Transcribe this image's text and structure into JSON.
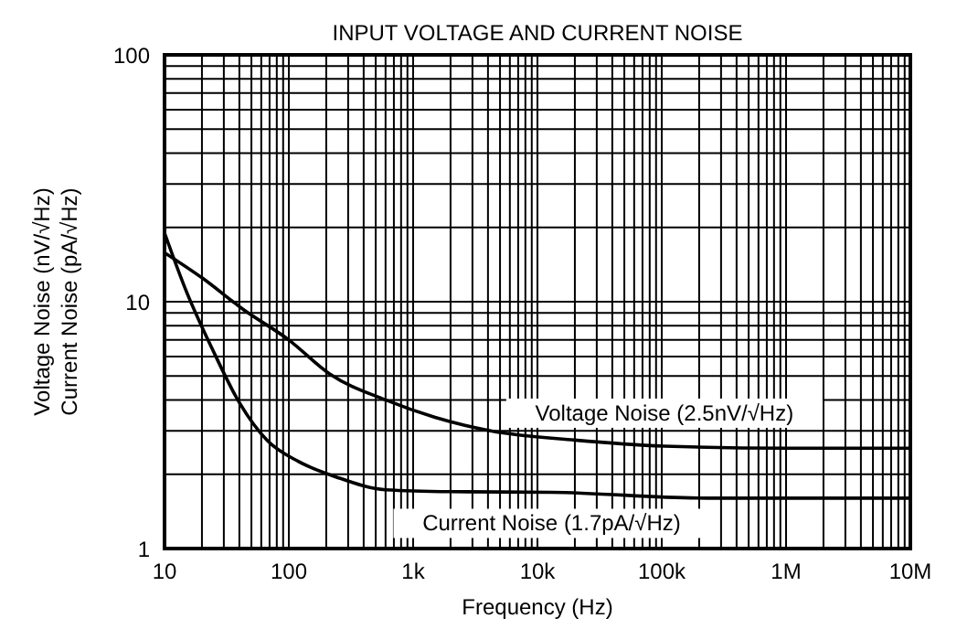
{
  "chart_data": {
    "type": "line",
    "title": "INPUT VOLTAGE AND CURRENT NOISE",
    "xlabel": "Frequency (Hz)",
    "ylabel": "Voltage Noise (nV/√Hz)\nCurrent Noise (pA/√Hz)",
    "log": "xy",
    "grid": true,
    "marker": "none",
    "line_style": "solid",
    "xlim": [
      10,
      10000000
    ],
    "ylim": [
      1,
      100
    ],
    "xticks": [
      {
        "value": 10,
        "label": "10"
      },
      {
        "value": 20,
        "label": null
      },
      {
        "value": 30,
        "label": null
      },
      {
        "value": 40,
        "label": null
      },
      {
        "value": 50,
        "label": null
      },
      {
        "value": 60,
        "label": null
      },
      {
        "value": 70,
        "label": null
      },
      {
        "value": 80,
        "label": null
      },
      {
        "value": 90,
        "label": null
      },
      {
        "value": 100,
        "label": "100"
      },
      {
        "value": 200,
        "label": null
      },
      {
        "value": 300,
        "label": null
      },
      {
        "value": 400,
        "label": null
      },
      {
        "value": 500,
        "label": null
      },
      {
        "value": 600,
        "label": null
      },
      {
        "value": 700,
        "label": null
      },
      {
        "value": 800,
        "label": null
      },
      {
        "value": 900,
        "label": null
      },
      {
        "value": 1000,
        "label": "1k"
      },
      {
        "value": 2000,
        "label": null
      },
      {
        "value": 3000,
        "label": null
      },
      {
        "value": 4000,
        "label": null
      },
      {
        "value": 5000,
        "label": null
      },
      {
        "value": 6000,
        "label": null
      },
      {
        "value": 7000,
        "label": null
      },
      {
        "value": 8000,
        "label": null
      },
      {
        "value": 9000,
        "label": null
      },
      {
        "value": 10000,
        "label": "10k"
      },
      {
        "value": 20000,
        "label": null
      },
      {
        "value": 30000,
        "label": null
      },
      {
        "value": 40000,
        "label": null
      },
      {
        "value": 50000,
        "label": null
      },
      {
        "value": 60000,
        "label": null
      },
      {
        "value": 70000,
        "label": null
      },
      {
        "value": 80000,
        "label": null
      },
      {
        "value": 90000,
        "label": null
      },
      {
        "value": 100000,
        "label": "100k"
      },
      {
        "value": 200000,
        "label": null
      },
      {
        "value": 300000,
        "label": null
      },
      {
        "value": 400000,
        "label": null
      },
      {
        "value": 500000,
        "label": null
      },
      {
        "value": 600000,
        "label": null
      },
      {
        "value": 700000,
        "label": null
      },
      {
        "value": 800000,
        "label": null
      },
      {
        "value": 900000,
        "label": null
      },
      {
        "value": 1000000,
        "label": "1M"
      },
      {
        "value": 2000000,
        "label": null
      },
      {
        "value": 3000000,
        "label": null
      },
      {
        "value": 4000000,
        "label": null
      },
      {
        "value": 5000000,
        "label": null
      },
      {
        "value": 6000000,
        "label": null
      },
      {
        "value": 7000000,
        "label": null
      },
      {
        "value": 8000000,
        "label": null
      },
      {
        "value": 9000000,
        "label": null
      },
      {
        "value": 10000000,
        "label": "10M"
      }
    ],
    "yticks": [
      {
        "value": 1,
        "label": "1"
      },
      {
        "value": 2,
        "label": null
      },
      {
        "value": 3,
        "label": null
      },
      {
        "value": 4,
        "label": null
      },
      {
        "value": 5,
        "label": null
      },
      {
        "value": 6,
        "label": null
      },
      {
        "value": 7,
        "label": null
      },
      {
        "value": 8,
        "label": null
      },
      {
        "value": 9,
        "label": null
      },
      {
        "value": 10,
        "label": "10"
      },
      {
        "value": 20,
        "label": null
      },
      {
        "value": 30,
        "label": null
      },
      {
        "value": 40,
        "label": null
      },
      {
        "value": 50,
        "label": null
      },
      {
        "value": 60,
        "label": null
      },
      {
        "value": 70,
        "label": null
      },
      {
        "value": 80,
        "label": null
      },
      {
        "value": 90,
        "label": null
      },
      {
        "value": 100,
        "label": "100"
      }
    ],
    "series": [
      {
        "name": "Voltage Noise (2.5nV/√Hz)",
        "color": "#000000",
        "x": [
          10,
          20,
          43,
          100,
          213,
          600,
          1500,
          4200,
          20000,
          105000,
          1000000,
          10000000
        ],
        "values": [
          15.8,
          12.5,
          9.3,
          7.0,
          5.1,
          4.0,
          3.4,
          3.0,
          2.75,
          2.6,
          2.55,
          2.55
        ]
      },
      {
        "name": "Current Noise (1.7pA/√Hz)",
        "color": "#000000",
        "x": [
          10,
          15,
          24,
          40,
          67,
          120,
          240,
          600,
          2000,
          13000,
          234000,
          1000000,
          10000000
        ],
        "values": [
          19,
          11,
          6.5,
          3.9,
          2.74,
          2.25,
          1.95,
          1.73,
          1.7,
          1.69,
          1.6,
          1.6,
          1.6
        ]
      }
    ]
  }
}
